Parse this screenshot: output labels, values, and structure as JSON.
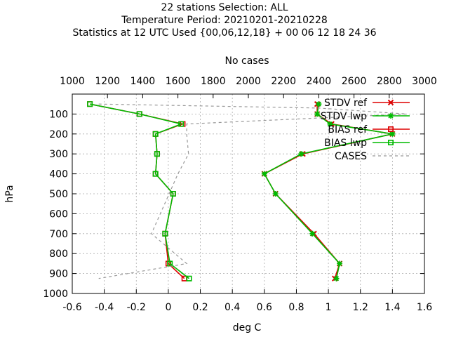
{
  "chart_data": {
    "type": "line",
    "title_lines": [
      "22 stations Selection: ALL",
      "Temperature  Period: 20210201-20210228",
      "Statistics at 12 UTC  Used {00,06,12,18} + 00 06 12 18 24 36"
    ],
    "xlabel": "deg C",
    "ylabel": "hPa",
    "x2label": "No cases",
    "xlim": [
      -0.6,
      1.6
    ],
    "ylim": [
      1000,
      0
    ],
    "x2lim": [
      1000,
      3000
    ],
    "xticks": [
      "-0.6",
      "-0.4",
      "-0.2",
      "0",
      "0.2",
      "0.4",
      "0.6",
      "0.8",
      "1",
      "1.2",
      "1.4",
      "1.6"
    ],
    "yticks": [
      "100",
      "200",
      "300",
      "400",
      "500",
      "600",
      "700",
      "800",
      "900",
      "1000"
    ],
    "x2ticks": [
      "1000",
      "1200",
      "1400",
      "1600",
      "1800",
      "2000",
      "2200",
      "2400",
      "2600",
      "2800",
      "3000"
    ],
    "grid": true,
    "legend_position": "top-right",
    "levels": [
      50,
      100,
      150,
      200,
      300,
      400,
      500,
      700,
      850,
      925
    ],
    "series": [
      {
        "name": "STDV ref",
        "color": "#dd0000",
        "marker": "x",
        "x": [
          0.93,
          0.93,
          1.02,
          1.4,
          0.84,
          0.6,
          0.67,
          0.91,
          1.07,
          1.04
        ],
        "y": [
          50,
          100,
          150,
          200,
          300,
          400,
          500,
          700,
          850,
          925
        ]
      },
      {
        "name": "STDV lwp",
        "color": "#00bb00",
        "marker": "asterisk",
        "x": [
          0.94,
          0.93,
          1.01,
          1.4,
          0.83,
          0.6,
          0.67,
          0.9,
          1.07,
          1.05
        ],
        "y": [
          50,
          100,
          150,
          200,
          300,
          400,
          500,
          700,
          850,
          925
        ]
      },
      {
        "name": "BIAS ref",
        "color": "#dd0000",
        "marker": "square",
        "x": [
          -0.49,
          -0.18,
          0.09,
          -0.08,
          -0.07,
          -0.08,
          0.03,
          -0.02,
          0.0,
          0.1
        ],
        "y": [
          50,
          100,
          150,
          200,
          300,
          400,
          500,
          700,
          850,
          925
        ]
      },
      {
        "name": "BIAS lwp",
        "color": "#00bb00",
        "marker": "square",
        "x": [
          -0.49,
          -0.18,
          0.08,
          -0.08,
          -0.07,
          -0.08,
          0.03,
          -0.02,
          0.01,
          0.13
        ],
        "y": [
          50,
          100,
          150,
          200,
          300,
          400,
          500,
          700,
          850,
          925
        ]
      },
      {
        "name": "CASES",
        "color": "#999999",
        "dashed": true,
        "axis": "x2",
        "x": [
          1150,
          2400,
          2900,
          1650,
          1650,
          1660,
          1600,
          1550,
          1450,
          1650,
          1150
        ],
        "y": [
          50,
          70,
          100,
          150,
          200,
          300,
          400,
          500,
          700,
          850,
          925
        ]
      }
    ]
  }
}
